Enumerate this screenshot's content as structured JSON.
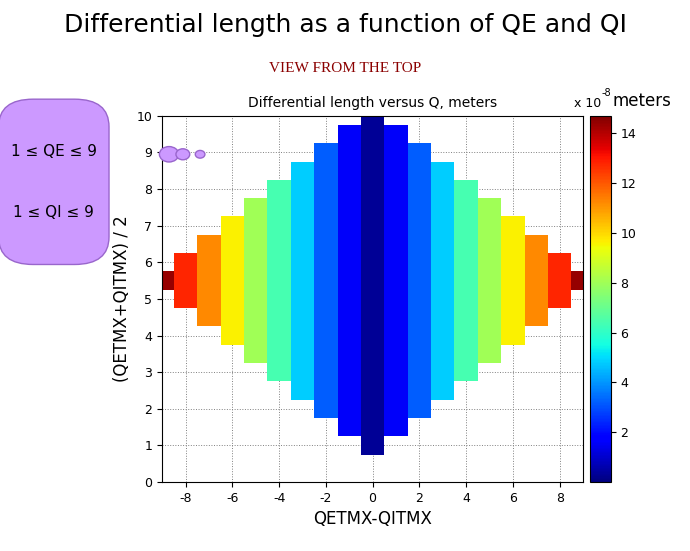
{
  "chart_data": {
    "type": "heatmap",
    "title": "Differential length as a function of QE and QI",
    "subtitle": "VIEW FROM THE TOP",
    "plot_title": "Differential length versus Q, meters",
    "annotations": [
      "1 ≤ QE ≤ 9",
      "1 ≤ QI ≤ 9"
    ],
    "x_label": "QETMX-QITMX",
    "y_label": "(QETMX+QITMX) / 2",
    "x": [
      -9,
      -8,
      -7,
      -6,
      -5,
      -4,
      -3,
      -2,
      -1,
      0,
      1,
      2,
      3,
      4,
      5,
      6,
      7,
      8,
      9
    ],
    "y": [
      1,
      1.5,
      2,
      2.5,
      3,
      3.5,
      4,
      4.5,
      5,
      5.5,
      6,
      6.5,
      7,
      7.5,
      8,
      8.5,
      9,
      9.5,
      10
    ],
    "cells": [
      [
        null,
        null,
        null,
        null,
        null,
        null,
        null,
        null,
        null,
        0.3,
        null,
        null,
        null,
        null,
        null,
        null,
        null,
        null,
        null
      ],
      [
        null,
        null,
        null,
        null,
        null,
        null,
        null,
        null,
        1.6,
        0.3,
        1.6,
        null,
        null,
        null,
        null,
        null,
        null,
        null,
        null
      ],
      [
        null,
        null,
        null,
        null,
        null,
        null,
        null,
        3.2,
        1.6,
        0.3,
        1.6,
        3.2,
        null,
        null,
        null,
        null,
        null,
        null,
        null
      ],
      [
        null,
        null,
        null,
        null,
        null,
        null,
        4.8,
        3.2,
        1.6,
        0.3,
        1.6,
        3.2,
        4.8,
        null,
        null,
        null,
        null,
        null,
        null
      ],
      [
        null,
        null,
        null,
        null,
        null,
        6.4,
        4.8,
        3.2,
        1.6,
        0.3,
        1.6,
        3.2,
        4.8,
        6.4,
        null,
        null,
        null,
        null,
        null
      ],
      [
        null,
        null,
        null,
        null,
        8.0,
        6.4,
        4.8,
        3.2,
        1.6,
        0.3,
        1.6,
        3.2,
        4.8,
        6.4,
        8.0,
        null,
        null,
        null,
        null
      ],
      [
        null,
        null,
        null,
        9.6,
        8.0,
        6.4,
        4.8,
        3.2,
        1.6,
        0.3,
        1.6,
        3.2,
        4.8,
        6.4,
        8.0,
        9.6,
        null,
        null,
        null
      ],
      [
        null,
        null,
        11.2,
        9.6,
        8.0,
        6.4,
        4.8,
        3.2,
        1.6,
        0.3,
        1.6,
        3.2,
        4.8,
        6.4,
        8.0,
        9.6,
        11.2,
        null,
        null
      ],
      [
        null,
        12.8,
        11.2,
        9.6,
        8.0,
        6.4,
        4.8,
        3.2,
        1.6,
        0.3,
        1.6,
        3.2,
        4.8,
        6.4,
        8.0,
        9.6,
        11.2,
        12.8,
        null
      ],
      [
        14.4,
        12.8,
        11.2,
        9.6,
        8.0,
        6.4,
        4.8,
        3.2,
        1.6,
        0.3,
        1.6,
        3.2,
        4.8,
        6.4,
        8.0,
        9.6,
        11.2,
        12.8,
        14.4
      ],
      [
        null,
        12.8,
        11.2,
        9.6,
        8.0,
        6.4,
        4.8,
        3.2,
        1.6,
        0.3,
        1.6,
        3.2,
        4.8,
        6.4,
        8.0,
        9.6,
        11.2,
        12.8,
        null
      ],
      [
        null,
        null,
        11.2,
        9.6,
        8.0,
        6.4,
        4.8,
        3.2,
        1.6,
        0.3,
        1.6,
        3.2,
        4.8,
        6.4,
        8.0,
        9.6,
        11.2,
        null,
        null
      ],
      [
        null,
        null,
        null,
        9.6,
        8.0,
        6.4,
        4.8,
        3.2,
        1.6,
        0.3,
        1.6,
        3.2,
        4.8,
        6.4,
        8.0,
        9.6,
        null,
        null,
        null
      ],
      [
        null,
        null,
        null,
        null,
        8.0,
        6.4,
        4.8,
        3.2,
        1.6,
        0.3,
        1.6,
        3.2,
        4.8,
        6.4,
        8.0,
        null,
        null,
        null,
        null
      ],
      [
        null,
        null,
        null,
        null,
        null,
        6.4,
        4.8,
        3.2,
        1.6,
        0.3,
        1.6,
        3.2,
        4.8,
        6.4,
        null,
        null,
        null,
        null,
        null
      ],
      [
        null,
        null,
        null,
        null,
        null,
        null,
        4.8,
        3.2,
        1.6,
        0.3,
        1.6,
        3.2,
        4.8,
        null,
        null,
        null,
        null,
        null,
        null
      ],
      [
        null,
        null,
        null,
        null,
        null,
        null,
        null,
        3.2,
        1.6,
        0.3,
        1.6,
        3.2,
        null,
        null,
        null,
        null,
        null,
        null,
        null
      ],
      [
        null,
        null,
        null,
        null,
        null,
        null,
        null,
        null,
        1.6,
        0.3,
        1.6,
        null,
        null,
        null,
        null,
        null,
        null,
        null,
        null
      ],
      [
        null,
        null,
        null,
        null,
        null,
        null,
        null,
        null,
        null,
        0.3,
        null,
        null,
        null,
        null,
        null,
        null,
        null,
        null,
        null
      ]
    ],
    "xlim": [
      -9,
      9
    ],
    "ylim": [
      0,
      10
    ],
    "xticks": [
      -8,
      -6,
      -4,
      -2,
      0,
      2,
      4,
      6,
      8
    ],
    "yticks": [
      0,
      1,
      2,
      3,
      4,
      5,
      6,
      7,
      8,
      9,
      10
    ],
    "grid": true,
    "colorbar": {
      "range": [
        0,
        14.7
      ],
      "ticks": [
        2,
        4,
        6,
        8,
        10,
        12,
        14
      ],
      "label": "x 10",
      "exponent": "-8",
      "unit": "meters"
    }
  }
}
